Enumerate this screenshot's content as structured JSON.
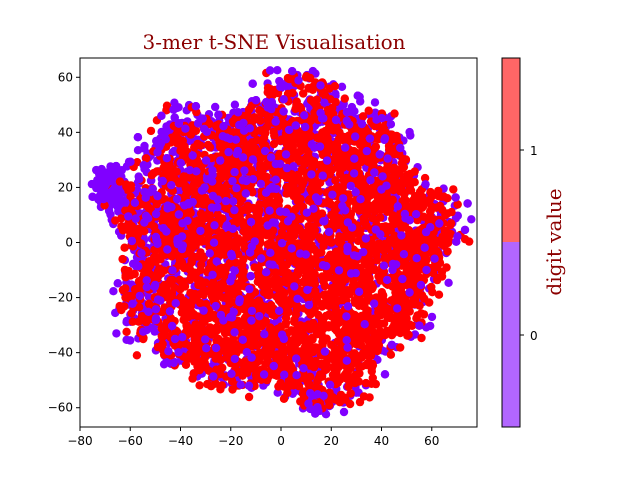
{
  "chart_data": {
    "type": "scatter",
    "title": "3-mer t-SNE Visualisation",
    "xlabel": "",
    "ylabel": "",
    "xlim": [
      -80,
      78
    ],
    "ylim": [
      -67,
      67
    ],
    "x_ticks": [
      -80,
      -60,
      -40,
      -20,
      0,
      20,
      40,
      60
    ],
    "y_ticks": [
      -60,
      -40,
      -20,
      0,
      20,
      40,
      60
    ],
    "grid": false,
    "series": [
      {
        "name": "0",
        "color": "#8000ff"
      },
      {
        "name": "1",
        "color": "#ff0000"
      }
    ],
    "colorbar": {
      "label": "digit value",
      "ticks": [
        "0",
        "1"
      ],
      "colors": [
        "#b266ff",
        "#ff6666"
      ]
    },
    "cloud": {
      "center": [
        0,
        0
      ],
      "radius_x": 70,
      "radius_y": 60,
      "class_0_tendency": "upper-left and outer rim",
      "class_1_tendency": "center and lower-right"
    }
  }
}
